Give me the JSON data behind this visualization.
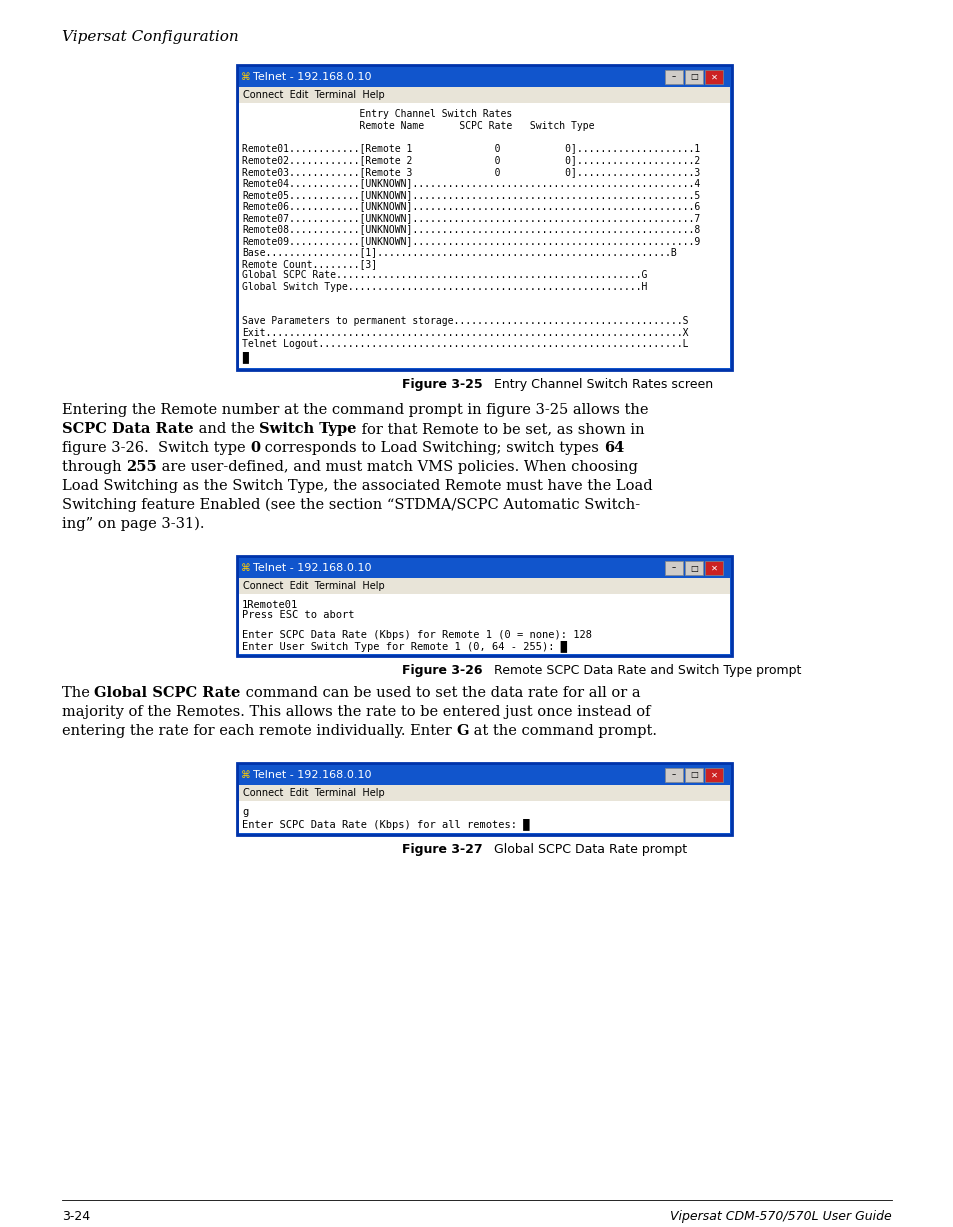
{
  "page_bg": "#ffffff",
  "header_text": "Vipersat Configuration",
  "footer_left": "3-24",
  "footer_right": "Vipersat CDM-570/570L User Guide",
  "fig1_title": "Telnet - 192.168.0.10",
  "fig1_menu": "Connect  Edit  Terminal  Help",
  "fig1_content": [
    "                    Entry Channel Switch Rates",
    "                    Remote Name      SCPC Rate   Switch Type",
    "",
    "Remote01............[Remote 1              0           0]....................1",
    "Remote02............[Remote 2              0           0]....................2",
    "Remote03............[Remote 3              0           0]....................3",
    "Remote04............[UNKNOWN]................................................4",
    "Remote05............[UNKNOWN]................................................5",
    "Remote06............[UNKNOWN]................................................6",
    "Remote07............[UNKNOWN]................................................7",
    "Remote08............[UNKNOWN]................................................8",
    "Remote09............[UNKNOWN]................................................9",
    "Base................[1]..................................................B",
    "Remote Count........[3]",
    "Global SCPC Rate....................................................G",
    "Global Switch Type..................................................H",
    "",
    "",
    "Save Parameters to permanent storage.......................................S",
    "Exit.......................................................................X",
    "Telnet Logout..............................................................L",
    "█"
  ],
  "fig1_caption_bold": "Figure 3-25",
  "fig1_caption_normal": "   Entry Channel Switch Rates screen",
  "fig2_title": "Telnet - 192.168.0.10",
  "fig2_menu": "Connect  Edit  Terminal  Help",
  "fig2_content": [
    "1Remote01",
    "Press ESC to abort",
    "",
    "Enter SCPC Data Rate (Kbps) for Remote 1 (0 = none): 128",
    "Enter User Switch Type for Remote 1 (0, 64 - 255): █"
  ],
  "fig2_caption_bold": "Figure 3-26",
  "fig2_caption_normal": "   Remote SCPC Data Rate and Switch Type prompt",
  "fig3_title": "Telnet - 192.168.0.10",
  "fig3_menu": "Connect  Edit  Terminal  Help",
  "fig3_content": [
    "g",
    "Enter SCPC Data Rate (Kbps) for all remotes: █"
  ],
  "fig3_caption_bold": "Figure 3-27",
  "fig3_caption_normal": "   Global SCPC Data Rate prompt",
  "titlebar_bg": "#1155cc",
  "titlebar_text": "#ffffff",
  "menubar_bg": "#e8e4d8",
  "menubar_text": "#000000",
  "terminal_bg": "#ffffff",
  "terminal_text": "#000000",
  "window_border_outer": "#0033aa",
  "window_border_inner": "#8899cc",
  "p1_lines": [
    [
      [
        "Entering the Remote number at the command prompt in figure 3-25 allows the",
        false
      ]
    ],
    [
      [
        "SCPC Data Rate",
        true
      ],
      [
        " and the ",
        false
      ],
      [
        "Switch Type",
        true
      ],
      [
        " for that Remote to be set, as shown in",
        false
      ]
    ],
    [
      [
        "figure 3-26.  Switch type ",
        false
      ],
      [
        "0",
        true
      ],
      [
        " corresponds to Load Switching; switch types ",
        false
      ],
      [
        "64",
        true
      ]
    ],
    [
      [
        "through ",
        false
      ],
      [
        "255",
        true
      ],
      [
        " are user-defined, and must match VMS policies. When choosing",
        false
      ]
    ],
    [
      [
        "Load Switching as the Switch Type, the associated Remote must have the Load",
        false
      ]
    ],
    [
      [
        "Switching feature Enabled (see the section “STDMA/SCPC Automatic Switch-",
        false
      ]
    ],
    [
      [
        "ing” on page 3-31).",
        false
      ]
    ]
  ],
  "p2_lines": [
    [
      [
        "The ",
        false
      ],
      [
        "Global SCPC Rate",
        true
      ],
      [
        " command can be used to set the data rate for all or a",
        false
      ]
    ],
    [
      [
        "majority of the Remotes. This allows the rate to be entered just once instead of",
        false
      ]
    ],
    [
      [
        "entering the rate for each remote individually. Enter ",
        false
      ],
      [
        "G",
        true
      ],
      [
        " at the command prompt.",
        false
      ]
    ]
  ]
}
